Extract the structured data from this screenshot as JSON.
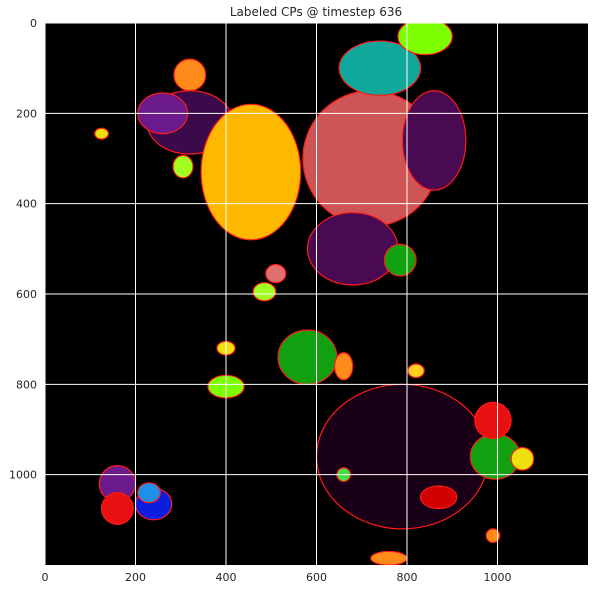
{
  "chart_data": {
    "type": "heatmap",
    "title": "Labeled CPs @ timestep 636",
    "xlabel": "",
    "ylabel": "",
    "xlim": [
      0,
      1200
    ],
    "ylim": [
      1200,
      0
    ],
    "x_ticks": [
      0,
      200,
      400,
      600,
      800,
      1000
    ],
    "y_ticks": [
      0,
      200,
      400,
      600,
      800,
      1000
    ],
    "grid": true,
    "grid_color": "#ffffff",
    "background_color": "#000000",
    "boundary_color": "#ff1a1a",
    "regions": [
      {
        "label": "dark-purple-top",
        "color": "#3a0a4a",
        "cx": 320,
        "cy": 220,
        "rx": 95,
        "ry": 70
      },
      {
        "label": "purple-left",
        "color": "#6a1a8a",
        "cx": 260,
        "cy": 200,
        "rx": 55,
        "ry": 45
      },
      {
        "label": "yellow-orange-large",
        "color": "#ffb800",
        "cx": 455,
        "cy": 330,
        "rx": 110,
        "ry": 150
      },
      {
        "label": "salmon-center",
        "color": "#cd5555",
        "cx": 720,
        "cy": 300,
        "rx": 150,
        "ry": 150
      },
      {
        "label": "dark-purple-right",
        "color": "#4a0a52",
        "cx": 860,
        "cy": 260,
        "rx": 70,
        "ry": 110
      },
      {
        "label": "purple-lower",
        "color": "#4a0a52",
        "cx": 680,
        "cy": 500,
        "rx": 100,
        "ry": 80
      },
      {
        "label": "teal-top",
        "color": "#10a89a",
        "cx": 740,
        "cy": 100,
        "rx": 90,
        "ry": 60
      },
      {
        "label": "green-top-right",
        "color": "#7cff00",
        "cx": 840,
        "cy": 30,
        "rx": 60,
        "ry": 40
      },
      {
        "label": "dark-cell-bottom",
        "color": "#1a0016",
        "cx": 790,
        "cy": 960,
        "rx": 190,
        "ry": 160
      },
      {
        "label": "green-right",
        "color": "#10a010",
        "cx": 995,
        "cy": 960,
        "rx": 55,
        "ry": 50
      },
      {
        "label": "green-middle",
        "color": "#10a010",
        "cx": 580,
        "cy": 740,
        "rx": 65,
        "ry": 60
      },
      {
        "label": "green-small",
        "color": "#10a010",
        "cx": 785,
        "cy": 525,
        "rx": 35,
        "ry": 35
      },
      {
        "label": "red-right",
        "color": "#e81010",
        "cx": 990,
        "cy": 880,
        "rx": 40,
        "ry": 40
      },
      {
        "label": "red-bottom",
        "color": "#d00000",
        "cx": 870,
        "cy": 1050,
        "rx": 40,
        "ry": 25
      },
      {
        "label": "blue-cell",
        "color": "#0b1ee0",
        "cx": 240,
        "cy": 1065,
        "rx": 40,
        "ry": 35
      },
      {
        "label": "lightblue-cell",
        "color": "#1e90e8",
        "cx": 230,
        "cy": 1040,
        "rx": 25,
        "ry": 22
      },
      {
        "label": "purple-bottom-left",
        "color": "#6a1a8a",
        "cx": 160,
        "cy": 1020,
        "rx": 40,
        "ry": 40
      },
      {
        "label": "red-bottom-left",
        "color": "#e81010",
        "cx": 160,
        "cy": 1075,
        "rx": 35,
        "ry": 35
      },
      {
        "label": "green-bottom-left",
        "color": "#7cff00",
        "cx": 400,
        "cy": 805,
        "rx": 40,
        "ry": 25
      },
      {
        "label": "yellow-right",
        "color": "#f0e010",
        "cx": 1055,
        "cy": 965,
        "rx": 25,
        "ry": 25
      },
      {
        "label": "orange-left",
        "color": "#ff8c1a",
        "cx": 320,
        "cy": 115,
        "rx": 35,
        "ry": 35
      },
      {
        "label": "salmon-small",
        "color": "#e07070",
        "cx": 510,
        "cy": 555,
        "rx": 22,
        "ry": 20
      },
      {
        "label": "lime-small",
        "color": "#a0ff20",
        "cx": 485,
        "cy": 595,
        "rx": 25,
        "ry": 20
      },
      {
        "label": "yellow-small-left",
        "color": "#f0e010",
        "cx": 125,
        "cy": 245,
        "rx": 15,
        "ry": 12
      },
      {
        "label": "lime-mid-left",
        "color": "#a0ff20",
        "cx": 305,
        "cy": 318,
        "rx": 22,
        "ry": 25
      },
      {
        "label": "green-mid-right-small",
        "color": "#40e040",
        "cx": 660,
        "cy": 1000,
        "rx": 15,
        "ry": 15
      },
      {
        "label": "orange-small-1",
        "color": "#ff8c1a",
        "cx": 990,
        "cy": 1135,
        "rx": 15,
        "ry": 15
      },
      {
        "label": "orange-bottom",
        "color": "#ff8c1a",
        "cx": 760,
        "cy": 1185,
        "rx": 40,
        "ry": 15
      },
      {
        "label": "orange-mid",
        "color": "#ff8c1a",
        "cx": 660,
        "cy": 760,
        "rx": 20,
        "ry": 30
      },
      {
        "label": "yellow-bottom-right",
        "color": "#ffd020",
        "cx": 820,
        "cy": 770,
        "rx": 18,
        "ry": 15
      },
      {
        "label": "yellow-mid-left",
        "color": "#f0e010",
        "cx": 400,
        "cy": 720,
        "rx": 20,
        "ry": 15
      }
    ]
  }
}
